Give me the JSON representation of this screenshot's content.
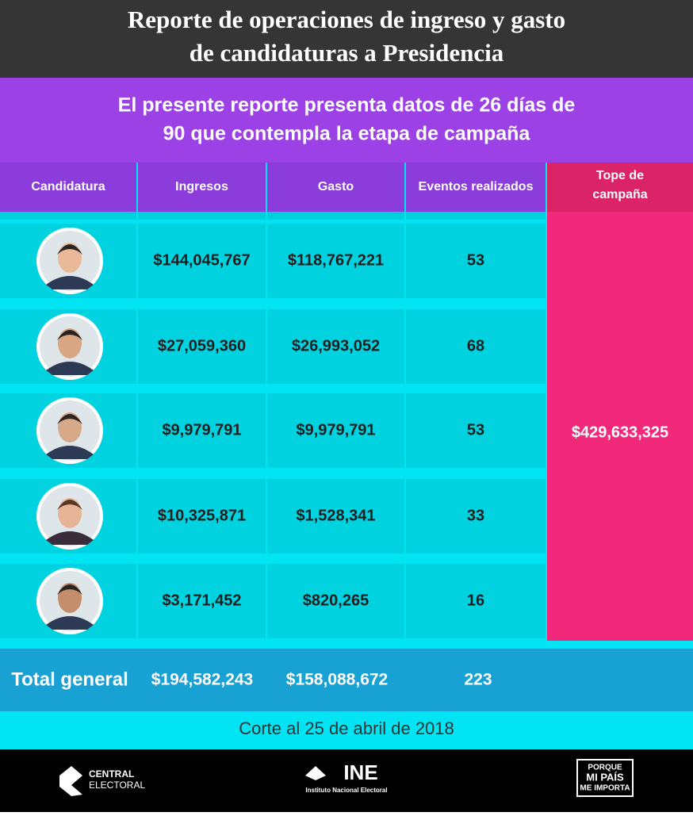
{
  "header": {
    "title_lines": [
      "Reporte de operaciones de ingreso y gasto",
      "de candidaturas a Presidencia"
    ],
    "subtitle_lines": [
      "El presente reporte presenta datos de 26 días de",
      "90 que contempla la etapa de campaña"
    ]
  },
  "table": {
    "columns": [
      "Candidatura",
      "Ingresos",
      "Gasto",
      "Eventos realizados"
    ],
    "cap_header_lines": [
      "Tope de",
      "campaña"
    ],
    "rows": [
      [
        "$144,045,767",
        "$118,767,221",
        "53"
      ],
      [
        "$27,059,360",
        "$26,993,052",
        "68"
      ],
      [
        "$9,979,791",
        "$9,979,791",
        "53"
      ],
      [
        "$10,325,871",
        "$1,528,341",
        "33"
      ],
      [
        "$3,171,452",
        "$820,265",
        "16"
      ]
    ],
    "cap_value": "$429,633,325",
    "total": [
      "Total general",
      "$194,582,243",
      "$158,088,672",
      "223"
    ]
  },
  "footer": {
    "note": "Corte al 25 de abril de 2018",
    "logo_left": [
      "CENTRAL",
      "ELECTORAL"
    ],
    "logo_center": [
      "INE",
      "Instituto Nacional Electoral"
    ],
    "logo_right": [
      "PORQUE",
      "MI PAÍS",
      "ME IMPORTA"
    ]
  }
}
